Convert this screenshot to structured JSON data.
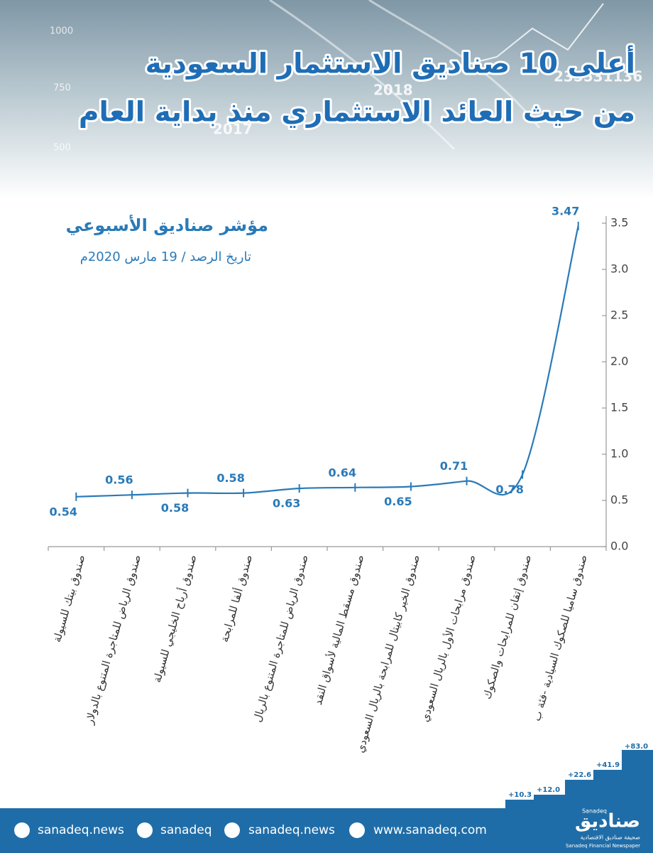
{
  "header": {
    "title_lines": [
      "أعلى 10 صناديق الاستثمار السعودية",
      "من حيث العائد الاستثماري منذ بداية العام"
    ],
    "background_texts": [
      "1000",
      "750",
      "500",
      "2018",
      "2017",
      "235531136"
    ]
  },
  "chart_data": {
    "type": "line",
    "title": "مؤشر صناديق الأسبوعي",
    "subtitle": "تاريخ الرصد / 19 مارس 2020م",
    "categories": [
      "صندوق بيتك للسيولة",
      "صندوق الرياض للمتاجرة المتنوع بالدولار",
      "صندوق أرباح الخليجي للسيولة",
      "صندوق ألفا للمرابحة",
      "صندوق الرياض للمتاجرة المتنوع بالريال",
      "صندوق مسقط المالية لأسواق النقد",
      "صندوق الخير كابيتال للمرابحة بالريال السعودي",
      "صندوق مرابحات الأول بالريال السعودي",
      "صندوق إتقان للمرابحات والصكوك",
      "صندوق ساميا للصكوك السيادية -فئة ب"
    ],
    "values": [
      0.54,
      0.56,
      0.58,
      0.58,
      0.63,
      0.64,
      0.65,
      0.71,
      0.78,
      3.47
    ],
    "color": "#2a7ab8",
    "ylim": [
      0,
      3.5
    ],
    "yticks": [
      {
        "value": 0,
        "label": "0.0"
      },
      0.5,
      {
        "value": 1,
        "label": "1.0"
      },
      1.5,
      {
        "value": 2,
        "label": "2.0"
      },
      2.5,
      {
        "value": 3,
        "label": "3.0"
      },
      3.5
    ],
    "y_axis_side": "right"
  },
  "footer": {
    "links": [
      "sanadeq.news",
      "sanadeq",
      "sanadeq.news",
      "www.sanadeq.com"
    ],
    "logo": "صناديق",
    "logo_latin": "Sanadeq",
    "tagline": "صحيفة صناديق الاقتصادية",
    "tagline_latin": "Sanadeq Financial Newspaper",
    "steps": [
      "+10.3",
      "+12.0",
      "+22.6",
      "+41.9",
      "+83.0"
    ]
  }
}
